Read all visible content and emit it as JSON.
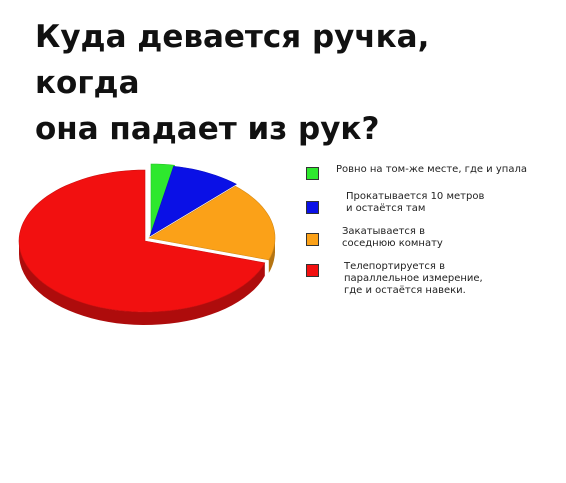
{
  "title_line1": "Куда девается ручка, когда",
  "title_line2": "она падает из рук?",
  "chart_data": {
    "type": "pie",
    "title": "Куда девается ручка, когда она падает из рук?",
    "labels": [
      "Ровно на том-же месте, где и упала",
      "Прокатывается 10 метров и остаётся там",
      "Закатывается в соседнюю комнату",
      "Телепортируется в параллельное измерение, где и остаётся навеки."
    ],
    "legend_lines": [
      [
        "Ровно на том-же месте, где и упала"
      ],
      [
        "Прокатывается 10 метров",
        "и остаётся там"
      ],
      [
        "Закатывается в",
        "соседнюю комнату"
      ],
      [
        "Телепортируется в",
        "параллельное измерение,",
        "где и остаётся навеки."
      ]
    ],
    "values": [
      3,
      9,
      18,
      70
    ],
    "colors": [
      "#2ee82e",
      "#0a10e6",
      "#fba118",
      "#f21010"
    ],
    "legend_placement": "right"
  }
}
